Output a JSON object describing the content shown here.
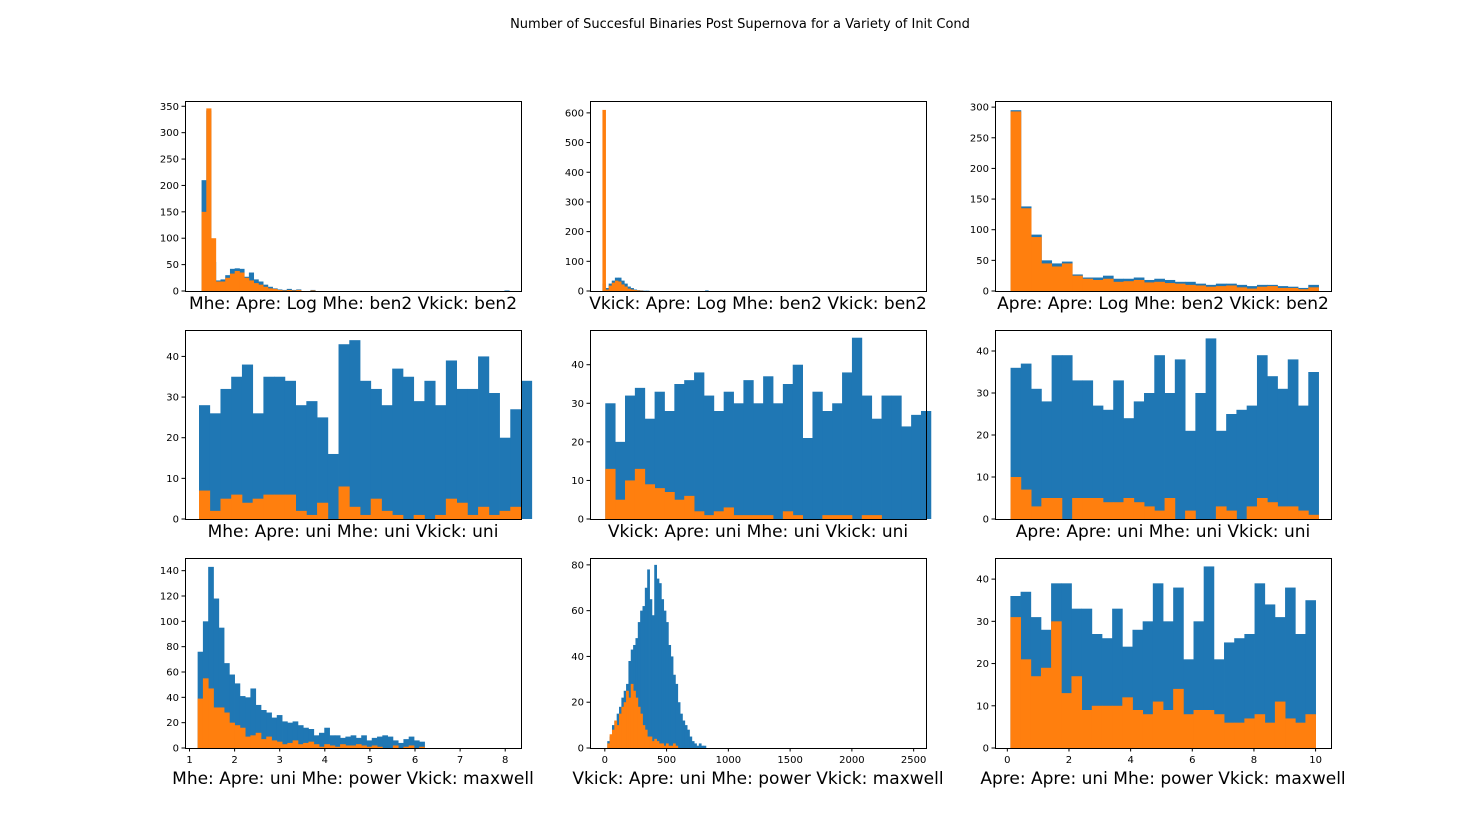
{
  "suptitle": "Number of Succesful Binaries Post Supernova for a Variety of Init Cond",
  "colors": {
    "total": "#1f77b4",
    "successful": "#ff7f0e"
  },
  "chart_data": [
    {
      "type": "bar",
      "xlabel": "Mhe: Apre: Log Mhe: ben2 Vkick: ben2",
      "xlim": [
        0.7,
        7.8
      ],
      "ylim": [
        0,
        360
      ],
      "xticks": [],
      "yticks": [
        0,
        50,
        100,
        150,
        200,
        250,
        300,
        350
      ],
      "bins": {
        "start": 1.05,
        "width": 0.1
      },
      "series": [
        {
          "values": [
            210,
            342,
            55,
            20,
            22,
            30,
            42,
            43,
            42,
            27,
            35,
            22,
            18,
            12,
            8,
            5,
            3,
            2,
            4,
            2,
            3,
            0,
            0,
            2,
            0,
            0,
            0,
            0,
            0,
            0,
            0,
            0,
            0,
            0,
            0,
            0,
            0,
            0,
            0,
            0,
            0,
            0,
            0,
            0,
            0,
            0,
            0,
            0,
            0,
            0,
            0,
            0,
            0,
            0,
            0,
            0,
            0,
            0,
            0,
            0,
            0,
            0,
            0,
            0,
            1
          ]
        },
        {
          "values": [
            150,
            346,
            100,
            18,
            18,
            25,
            33,
            38,
            35,
            25,
            20,
            15,
            12,
            8,
            5,
            4,
            2,
            1,
            2,
            1,
            2,
            0,
            0,
            1
          ]
        }
      ]
    },
    {
      "type": "bar",
      "xlabel": "Vkick: Apre: Log Mhe: ben2 Vkick: ben2",
      "xlim": [
        -100,
        2600
      ],
      "ylim": [
        0,
        640
      ],
      "xticks": [],
      "yticks": [
        0,
        100,
        200,
        300,
        400,
        500,
        600
      ],
      "bins": {
        "start": 0,
        "width": 25
      },
      "series": [
        {
          "values": [
            25,
            10,
            25,
            35,
            45,
            45,
            35,
            25,
            15,
            10,
            5,
            3,
            2,
            1,
            1,
            0,
            0,
            0,
            0,
            0,
            0,
            0,
            0,
            0,
            0,
            0,
            0,
            0,
            0,
            0,
            0,
            0,
            0,
            2
          ]
        },
        {
          "values": [
            610,
            5,
            18,
            28,
            35,
            32,
            22,
            15,
            8,
            5,
            3,
            2,
            1
          ]
        }
      ]
    },
    {
      "type": "bar",
      "xlabel": "Apre: Apre: Log Mhe: ben2 Vkick: ben2",
      "xlim": [
        -0.4,
        10.4
      ],
      "ylim": [
        0,
        310
      ],
      "xticks": [],
      "yticks": [
        0,
        50,
        100,
        150,
        200,
        250,
        300
      ],
      "bins": {
        "start": 0.1,
        "width": 0.33
      },
      "series": [
        {
          "values": [
            295,
            138,
            92,
            50,
            45,
            48,
            27,
            22,
            22,
            25,
            20,
            20,
            22,
            18,
            20,
            18,
            15,
            15,
            12,
            10,
            12,
            12,
            10,
            8,
            10,
            10,
            8,
            7,
            5,
            10
          ]
        },
        {
          "values": [
            293,
            135,
            88,
            45,
            40,
            45,
            25,
            20,
            18,
            20,
            15,
            16,
            18,
            14,
            15,
            13,
            12,
            10,
            9,
            7,
            8,
            9,
            6,
            4,
            7,
            8,
            5,
            5,
            3,
            6
          ]
        }
      ]
    },
    {
      "type": "bar",
      "xlabel": "Mhe: Apre: uni Mhe: uni Vkick: uni",
      "xlim": [
        0.9,
        8.1
      ],
      "ylim": [
        0,
        46.5
      ],
      "xticks": [],
      "yticks": [
        0,
        10,
        20,
        30,
        40
      ],
      "bins": {
        "start": 1.2,
        "width": 0.23
      },
      "series": [
        {
          "values": [
            28,
            26,
            32,
            35,
            38,
            26,
            35,
            35,
            34,
            28,
            29,
            25,
            16,
            43,
            44,
            34,
            32,
            28,
            37,
            35,
            29,
            34,
            28,
            39,
            32,
            32,
            40,
            31,
            20,
            27,
            34
          ]
        },
        {
          "values": [
            7,
            2,
            5,
            6,
            4,
            5,
            6,
            6,
            6,
            2,
            1,
            4,
            0,
            8,
            3,
            1,
            5,
            2,
            1,
            0,
            1,
            0,
            1,
            5,
            4,
            1,
            3,
            1,
            2,
            3,
            0
          ]
        }
      ]
    },
    {
      "type": "bar",
      "xlabel": "Vkick: Apre: uni Mhe: uni Vkick: uni",
      "xlim": [
        -0.05,
        1.05
      ],
      "ylim": [
        0,
        49
      ],
      "xticks": [],
      "yticks": [
        0,
        10,
        20,
        30,
        40
      ],
      "bins": {
        "start": 0.0,
        "width": 0.0323
      },
      "series": [
        {
          "values": [
            30,
            20,
            32,
            34,
            26,
            33,
            28,
            35,
            36,
            38,
            32,
            28,
            33,
            30,
            36,
            30,
            37,
            30,
            35,
            40,
            21,
            33,
            28,
            30,
            38,
            47,
            32,
            26,
            32,
            32,
            24,
            27,
            28
          ]
        },
        {
          "values": [
            13,
            5,
            10,
            13,
            9,
            8,
            7,
            5,
            6,
            2,
            1,
            2,
            3,
            1,
            1,
            1,
            1,
            0,
            2,
            1,
            0,
            0,
            1,
            1,
            1,
            0,
            1,
            1,
            0,
            0,
            0,
            0,
            0
          ]
        }
      ]
    },
    {
      "type": "bar",
      "xlabel": "Apre: Apre: uni Mhe: uni Vkick: uni",
      "xlim": [
        -0.4,
        10.4
      ],
      "ylim": [
        0,
        45
      ],
      "xticks": [],
      "yticks": [
        0,
        10,
        20,
        30,
        40
      ],
      "bins": {
        "start": 0.1,
        "width": 0.33
      },
      "series": [
        {
          "values": [
            36,
            37,
            31,
            28,
            39,
            39,
            33,
            33,
            27,
            26,
            33,
            24,
            28,
            30,
            39,
            30,
            38,
            21,
            30,
            43,
            21,
            25,
            26,
            27,
            39,
            34,
            31,
            38,
            27,
            35
          ]
        },
        {
          "values": [
            10,
            7,
            3,
            5,
            5,
            0,
            5,
            5,
            5,
            4,
            4,
            5,
            4,
            3,
            2,
            5,
            0,
            2,
            0,
            0,
            3,
            2,
            0,
            3,
            5,
            4,
            3,
            3,
            2,
            1
          ]
        }
      ]
    },
    {
      "type": "bar",
      "xlabel": "Mhe: Apre: uni Mhe: power Vkick: maxwell",
      "xlim": [
        0.9,
        8.35
      ],
      "ylim": [
        0,
        150
      ],
      "xticks": [
        1,
        2,
        3,
        4,
        5,
        6,
        7,
        8
      ],
      "yticks": [
        0,
        20,
        40,
        60,
        80,
        100,
        120,
        140
      ],
      "bins": {
        "start": 1.18,
        "width": 0.117
      },
      "series": [
        {
          "values": [
            76,
            100,
            143,
            118,
            95,
            67,
            58,
            51,
            41,
            40,
            47,
            34,
            30,
            28,
            24,
            26,
            21,
            20,
            21,
            18,
            16,
            15,
            10,
            12,
            16,
            10,
            10,
            8,
            9,
            10,
            8,
            10,
            6,
            8,
            9,
            10,
            9,
            6,
            4,
            7,
            9,
            6,
            5
          ]
        },
        {
          "values": [
            39,
            55,
            47,
            32,
            32,
            28,
            20,
            18,
            16,
            9,
            10,
            12,
            7,
            9,
            6,
            5,
            3,
            4,
            6,
            3,
            4,
            5,
            3,
            1,
            3,
            2,
            1,
            3,
            2,
            2,
            3,
            2,
            1,
            2,
            1,
            0,
            0,
            2,
            0,
            1,
            2,
            0,
            1
          ]
        }
      ]
    },
    {
      "type": "bar",
      "xlabel": "Vkick: Apre: uni Mhe: power Vkick: maxwell",
      "xlim": [
        -120,
        2600
      ],
      "ylim": [
        0,
        83
      ],
      "xticks": [
        0,
        500,
        1000,
        1500,
        2000,
        2500
      ],
      "yticks": [
        0,
        20,
        40,
        60,
        80
      ],
      "bins": {
        "start": 20,
        "width": 19
      },
      "series": [
        {
          "values": [
            3,
            5,
            10,
            12,
            15,
            18,
            22,
            25,
            28,
            38,
            43,
            45,
            48,
            55,
            60,
            62,
            70,
            78,
            65,
            58,
            80,
            74,
            72,
            65,
            60,
            55,
            45,
            40,
            32,
            28,
            20,
            15,
            12,
            10,
            8,
            5,
            3,
            2,
            1,
            2,
            1,
            1
          ]
        },
        {
          "values": [
            2,
            6,
            8,
            12,
            10,
            15,
            18,
            20,
            25,
            22,
            28,
            25,
            22,
            18,
            15,
            10,
            8,
            5,
            5,
            3,
            4,
            3,
            2,
            2,
            1,
            2,
            1,
            1,
            2,
            1
          ]
        }
      ]
    },
    {
      "type": "bar",
      "xlabel": "Apre: Apre: uni Mhe: power Vkick: maxwell",
      "xlim": [
        -0.4,
        10.5
      ],
      "ylim": [
        0,
        45
      ],
      "xticks": [
        0,
        2,
        4,
        6,
        8,
        10
      ],
      "yticks": [
        0,
        10,
        20,
        30,
        40
      ],
      "bins": {
        "start": 0.1,
        "width": 0.33
      },
      "series": [
        {
          "values": [
            36,
            37,
            31,
            28,
            39,
            39,
            33,
            33,
            27,
            26,
            33,
            24,
            28,
            30,
            39,
            30,
            38,
            21,
            30,
            43,
            21,
            25,
            26,
            27,
            39,
            34,
            31,
            38,
            27,
            35
          ]
        },
        {
          "values": [
            31,
            21,
            17,
            19,
            30,
            13,
            17,
            9,
            10,
            10,
            10,
            12,
            9,
            8,
            11,
            9,
            14,
            8,
            9,
            9,
            8,
            6,
            6,
            7,
            8,
            6,
            11,
            7,
            6,
            8
          ]
        }
      ]
    }
  ]
}
